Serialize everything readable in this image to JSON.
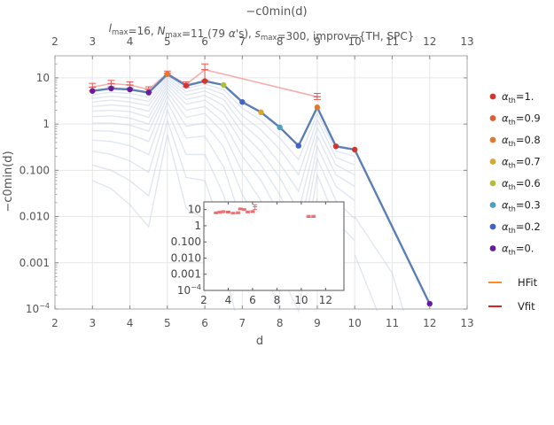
{
  "chart_data": {
    "type": "line",
    "title": "−c0min(d)",
    "subtitle_parts": [
      {
        "t": "l",
        "italic": true
      },
      {
        "t": "max",
        "sub": true
      },
      {
        "t": "=16, "
      },
      {
        "t": "N",
        "italic": true
      },
      {
        "t": "max",
        "sub": true
      },
      {
        "t": "=11 (79 "
      },
      {
        "t": "α",
        "italic": true
      },
      {
        "t": "'s), "
      },
      {
        "t": "s",
        "italic": true
      },
      {
        "t": "max",
        "sub": true
      },
      {
        "t": "=300, improv={TH, SPC}"
      }
    ],
    "xlabel": "d",
    "ylabel": "−c0min(d)",
    "xlim": [
      2,
      13
    ],
    "ylim": [
      0.0001,
      30
    ],
    "yscale": "log",
    "x_ticks": [
      "2",
      "3",
      "4",
      "5",
      "6",
      "7",
      "8",
      "9",
      "10",
      "11",
      "12",
      "13"
    ],
    "y_ticks": [
      {
        "v": 0.0001,
        "label": "10",
        "sup": "−4"
      },
      {
        "v": 0.001,
        "label": "0.001"
      },
      {
        "v": 0.01,
        "label": "0.010"
      },
      {
        "v": 0.1,
        "label": "0.100"
      },
      {
        "v": 1,
        "label": "1"
      },
      {
        "v": 10,
        "label": "10"
      }
    ],
    "grid": true,
    "main_series": {
      "x": [
        3,
        3.5,
        4,
        4.5,
        5,
        5.5,
        6,
        6.5,
        7,
        7.5,
        8,
        8.5,
        9,
        9.5,
        10,
        12
      ],
      "y": [
        5.2,
        5.9,
        5.6,
        4.8,
        12.0,
        6.8,
        8.5,
        7.0,
        3.0,
        1.8,
        0.85,
        0.34,
        2.3,
        0.33,
        0.28,
        0.00013
      ],
      "color": "#5b7fb5"
    },
    "points": [
      {
        "x": 3,
        "y": 5.2,
        "color": "#6a1b9a"
      },
      {
        "x": 3.5,
        "y": 5.9,
        "color": "#6a1b9a"
      },
      {
        "x": 4,
        "y": 5.6,
        "color": "#6a1b9a"
      },
      {
        "x": 4.5,
        "y": 4.8,
        "color": "#6a1b9a"
      },
      {
        "x": 5,
        "y": 12.0,
        "color": "#e0782f"
      },
      {
        "x": 5.5,
        "y": 6.8,
        "color": "#d3352b"
      },
      {
        "x": 6,
        "y": 8.5,
        "color": "#d3352b"
      },
      {
        "x": 6.5,
        "y": 7.0,
        "color": "#b4bd3a"
      },
      {
        "x": 7,
        "y": 3.0,
        "color": "#3f63c7"
      },
      {
        "x": 7.5,
        "y": 1.8,
        "color": "#d9a534"
      },
      {
        "x": 8,
        "y": 0.85,
        "color": "#4b9ec4"
      },
      {
        "x": 8.5,
        "y": 0.34,
        "color": "#3f63c7"
      },
      {
        "x": 9,
        "y": 2.3,
        "color": "#e0782f"
      },
      {
        "x": 9.5,
        "y": 0.33,
        "color": "#d3352b"
      },
      {
        "x": 10,
        "y": 0.28,
        "color": "#d3352b"
      },
      {
        "x": 12,
        "y": 0.00013,
        "color": "#6a1b9a"
      }
    ],
    "faint_series": [
      {
        "x": [
          3,
          3.5,
          4,
          4.5,
          5,
          5.5,
          6,
          6.5,
          7,
          7.5,
          8,
          8.5,
          9,
          9.5,
          10
        ],
        "y": [
          4.3,
          4.9,
          4.6,
          3.8,
          11.0,
          5.9,
          7.3,
          5.6,
          2.2,
          1.2,
          0.5,
          0.17,
          1.7,
          0.26,
          0.2
        ]
      },
      {
        "x": [
          3,
          3.5,
          4,
          4.5,
          5,
          5.5,
          6,
          6.5,
          7,
          7.5,
          8,
          8.5,
          9,
          9.5,
          10
        ],
        "y": [
          3.6,
          4.0,
          3.7,
          3.1,
          10.0,
          5.0,
          6.2,
          4.4,
          1.5,
          0.75,
          0.28,
          0.08,
          1.25,
          0.19,
          0.13
        ]
      },
      {
        "x": [
          3,
          3.5,
          4,
          4.5,
          5,
          5.5,
          6,
          6.5,
          7,
          7.5,
          8,
          8.5,
          9,
          9.5,
          10
        ],
        "y": [
          3.0,
          3.3,
          3.0,
          2.5,
          9.0,
          4.2,
          5.2,
          3.4,
          1.0,
          0.45,
          0.14,
          0.035,
          0.85,
          0.13,
          0.08
        ]
      },
      {
        "x": [
          3,
          3.5,
          4,
          4.5,
          5,
          5.5,
          6,
          6.5,
          7,
          7.5,
          8,
          8.5,
          9,
          9.5,
          10
        ],
        "y": [
          2.4,
          2.6,
          2.4,
          1.9,
          8.0,
          3.4,
          4.2,
          2.5,
          0.65,
          0.25,
          0.07,
          0.013,
          0.55,
          0.08,
          0.045
        ]
      },
      {
        "x": [
          3,
          3.5,
          4,
          4.5,
          5,
          5.5,
          6,
          6.5,
          7,
          7.5,
          8,
          8.5,
          9,
          9.5,
          10
        ],
        "y": [
          1.9,
          2.0,
          1.85,
          1.4,
          7.0,
          2.7,
          3.3,
          1.7,
          0.38,
          0.13,
          0.03,
          0.004,
          0.33,
          0.045,
          0.022
        ]
      },
      {
        "x": [
          3,
          3.5,
          4,
          4.5,
          5,
          5.5,
          6,
          6.5,
          7,
          7.5,
          8,
          8.5,
          9,
          9.5,
          10
        ],
        "y": [
          1.45,
          1.5,
          1.35,
          1.0,
          6.0,
          2.0,
          2.4,
          1.1,
          0.2,
          0.06,
          0.011,
          0.0013,
          0.18,
          0.022,
          0.009
        ]
      },
      {
        "x": [
          3,
          3.5,
          4,
          4.5,
          5,
          5.5,
          6,
          6.5,
          7,
          7.5,
          8,
          8.5,
          9,
          9.5,
          10
        ],
        "y": [
          1.05,
          1.05,
          0.95,
          0.7,
          5.0,
          1.4,
          1.7,
          0.65,
          0.09,
          0.022,
          0.003,
          0.00025,
          0.08,
          0.008,
          0.003
        ]
      },
      {
        "x": [
          3,
          3.5,
          4,
          4.5,
          5,
          5.5,
          6,
          6.5,
          7,
          7.5,
          8,
          8.5,
          9
        ],
        "y": [
          0.72,
          0.7,
          0.6,
          0.42,
          4.0,
          0.9,
          1.05,
          0.32,
          0.03,
          0.006,
          0.0006,
          5e-05,
          0.025
        ]
      },
      {
        "x": [
          3,
          3.5,
          4,
          4.5,
          5,
          5.5,
          6,
          6.5,
          7,
          7.5,
          8
        ],
        "y": [
          0.45,
          0.42,
          0.34,
          0.22,
          3.0,
          0.5,
          0.55,
          0.12,
          0.007,
          0.0011,
          5e-05
        ]
      },
      {
        "x": [
          3,
          3.5,
          4,
          4.5,
          5,
          5.5,
          6,
          6.5,
          7
        ],
        "y": [
          0.26,
          0.22,
          0.16,
          0.09,
          2.0,
          0.22,
          0.22,
          0.03,
          0.0009
        ]
      },
      {
        "x": [
          3,
          3.5,
          4,
          4.5,
          5,
          5.5,
          6,
          6.5
        ],
        "y": [
          0.13,
          0.1,
          0.06,
          0.028,
          1.2,
          0.07,
          0.06,
          0.004
        ]
      },
      {
        "x": [
          3,
          3.5,
          4,
          4.5,
          5,
          5.5,
          6
        ],
        "y": [
          0.06,
          0.04,
          0.018,
          0.006,
          0.6,
          0.015,
          0.009
        ]
      },
      {
        "x": [
          6,
          6.5,
          6.8
        ],
        "y": [
          0.004,
          0.0009,
          5e-05
        ]
      },
      {
        "x": [
          10,
          11,
          11.3
        ],
        "y": [
          0.01,
          0.0006,
          5e-05
        ]
      },
      {
        "x": [
          10,
          10.6
        ],
        "y": [
          0.0015,
          5e-05
        ]
      }
    ],
    "error_bars": [
      {
        "x": 3,
        "y": 6.3,
        "lo": 5.2,
        "hi": 7.6
      },
      {
        "x": 3.5,
        "y": 7.5,
        "lo": 6.4,
        "hi": 8.8
      },
      {
        "x": 4,
        "y": 7.0,
        "lo": 6.0,
        "hi": 8.2
      },
      {
        "x": 4.5,
        "y": 5.6,
        "lo": 4.9,
        "hi": 6.4
      },
      {
        "x": 5,
        "y": 12.5,
        "lo": 11.2,
        "hi": 14.0
      },
      {
        "x": 5.5,
        "y": 7.2,
        "lo": 6.4,
        "hi": 8.2
      },
      {
        "x": 6,
        "y": 15.0,
        "lo": 9.0,
        "hi": 20.0
      },
      {
        "x": 9,
        "y": 3.9,
        "lo": 3.4,
        "hi": 4.6
      }
    ],
    "legend": [
      {
        "label": "=1.",
        "color": "#d3352b",
        "kind": "dot"
      },
      {
        "label": "=0.9",
        "color": "#dc5f2e",
        "kind": "dot"
      },
      {
        "label": "=0.8",
        "color": "#e0782f",
        "kind": "dot"
      },
      {
        "label": "=0.7",
        "color": "#d9a534",
        "kind": "dot"
      },
      {
        "label": "=0.6",
        "color": "#b4bd3a",
        "kind": "dot"
      },
      {
        "label": "=0.3",
        "color": "#4b9ec4",
        "kind": "dot"
      },
      {
        "label": "=0.2",
        "color": "#3f63c7",
        "kind": "dot"
      },
      {
        "label": "=0.",
        "color": "#6a1b9a",
        "kind": "dot"
      },
      {
        "label": "HFit",
        "color": "#ff8c1a",
        "kind": "line"
      },
      {
        "label": "Vfit",
        "color": "#e02020",
        "kind": "line"
      }
    ],
    "legend_symbol": {
      "greek": "α",
      "sub": "th"
    },
    "inset": {
      "xlim": [
        2,
        13.5
      ],
      "ylim": [
        0.0001,
        30
      ],
      "yscale": "log",
      "x_ticks": [
        "2",
        "4",
        "6",
        "8",
        "10",
        "12"
      ],
      "y_ticks": [
        {
          "v": 10,
          "label": "10"
        },
        {
          "v": 1,
          "label": "1"
        },
        {
          "v": 0.1,
          "label": "0.100"
        },
        {
          "v": 0.01,
          "label": "0.010"
        },
        {
          "v": 0.001,
          "label": "0.001"
        },
        {
          "v": 0.0001,
          "label": "10",
          "sup": "−4"
        }
      ],
      "error_points": [
        {
          "x": 3.0,
          "y": 6.3,
          "lo": 5.6,
          "hi": 7.2
        },
        {
          "x": 3.3,
          "y": 6.8,
          "lo": 6.0,
          "hi": 7.8
        },
        {
          "x": 3.6,
          "y": 7.4,
          "lo": 6.5,
          "hi": 8.5
        },
        {
          "x": 4.0,
          "y": 7.0,
          "lo": 6.2,
          "hi": 8.0
        },
        {
          "x": 4.4,
          "y": 6.0,
          "lo": 5.3,
          "hi": 6.8
        },
        {
          "x": 4.8,
          "y": 6.4,
          "lo": 5.6,
          "hi": 7.3
        },
        {
          "x": 5.0,
          "y": 11.0,
          "lo": 9.8,
          "hi": 12.5
        },
        {
          "x": 5.3,
          "y": 10.0,
          "lo": 8.8,
          "hi": 11.4
        },
        {
          "x": 5.6,
          "y": 7.2,
          "lo": 6.3,
          "hi": 8.2
        },
        {
          "x": 6.0,
          "y": 7.5,
          "lo": 6.6,
          "hi": 8.6
        },
        {
          "x": 6.2,
          "y": 15.0,
          "lo": 10.0,
          "hi": 20.0
        },
        {
          "x": 10.6,
          "y": 3.8,
          "lo": 3.3,
          "hi": 4.4
        },
        {
          "x": 11.0,
          "y": 3.8,
          "lo": 3.3,
          "hi": 4.4
        }
      ]
    }
  }
}
